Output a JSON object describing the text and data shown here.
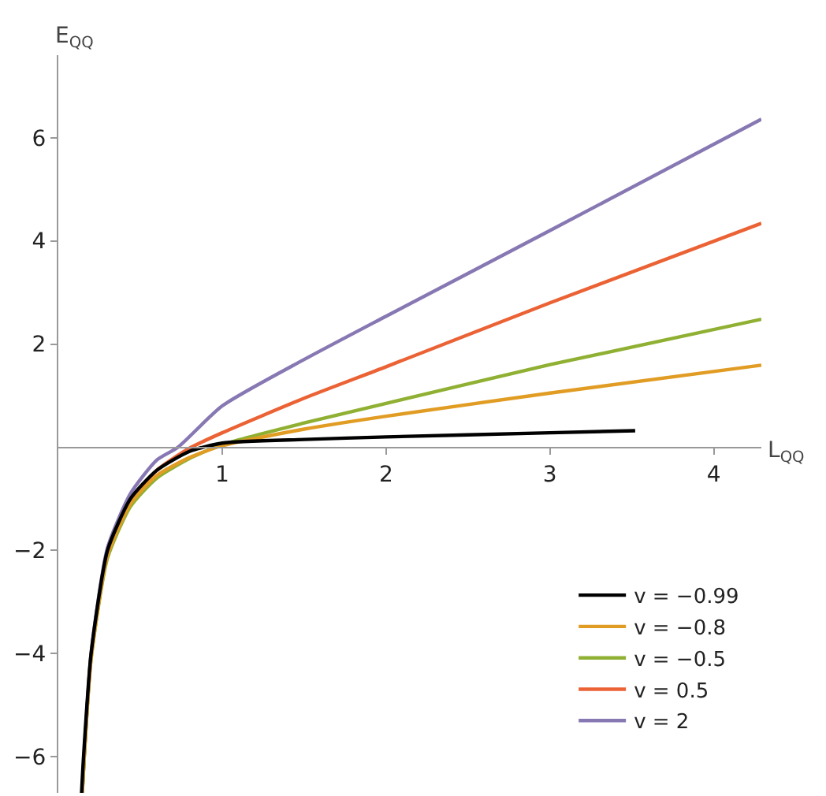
{
  "chart_data": {
    "type": "line",
    "xlabel": "L$_{QQ}$",
    "ylabel": "E$_{QQ}$",
    "xlim": [
      0,
      4.29
    ],
    "ylim": [
      -6.7,
      7.6
    ],
    "xticks": [
      1,
      2,
      3,
      4
    ],
    "yticks": [
      -6,
      -4,
      -2,
      2,
      4,
      6
    ],
    "grid": false,
    "legend": "bottom right",
    "line_style": "solid",
    "marker": "none",
    "series": [
      {
        "name": "v = −0.99",
        "color": "#000000",
        "x": [
          0.142,
          0.154,
          0.2,
          0.3,
          0.44,
          0.6,
          0.8,
          1,
          1.5,
          2,
          3,
          3.52
        ],
        "values": [
          -6.7,
          -6,
          -4,
          -2,
          -1,
          -0.45,
          -0.08,
          0.08,
          0.15,
          0.2,
          0.28,
          0.32
        ]
      },
      {
        "name": "v = −0.8",
        "color": "#e19c24",
        "x": [
          0.145,
          0.157,
          0.2,
          0.3,
          0.44,
          0.6,
          0.8,
          1,
          1.5,
          2,
          3,
          4.29
        ],
        "values": [
          -6.7,
          -6,
          -4.1,
          -2.1,
          -1.1,
          -0.55,
          -0.2,
          0.03,
          0.35,
          0.6,
          1.05,
          1.59
        ]
      },
      {
        "name": "v = −0.5",
        "color": "#8fb032",
        "x": [
          0.146,
          0.158,
          0.2,
          0.3,
          0.44,
          0.6,
          0.8,
          1,
          1.5,
          2,
          3,
          4.29
        ],
        "values": [
          -6.7,
          -6,
          -4.1,
          -2.15,
          -1.15,
          -0.6,
          -0.22,
          0.05,
          0.47,
          0.85,
          1.6,
          2.48
        ]
      },
      {
        "name": "v = 0.5",
        "color": "#eb6235",
        "x": [
          0.146,
          0.158,
          0.2,
          0.3,
          0.44,
          0.6,
          0.8,
          1,
          1.5,
          2,
          3,
          4.29
        ],
        "values": [
          -6.7,
          -6,
          -4.05,
          -2.1,
          -1.05,
          -0.45,
          -0.02,
          0.28,
          0.95,
          1.56,
          2.8,
          4.34
        ]
      },
      {
        "name": "v = 2",
        "color": "#8778b3",
        "x": [
          0.146,
          0.158,
          0.2,
          0.3,
          0.44,
          0.6,
          0.73,
          1,
          1.5,
          2,
          3,
          4.29
        ],
        "values": [
          -6.7,
          -6,
          -4,
          -1.95,
          -0.9,
          -0.25,
          0,
          0.8,
          1.7,
          2.54,
          4.2,
          6.36
        ]
      }
    ]
  }
}
